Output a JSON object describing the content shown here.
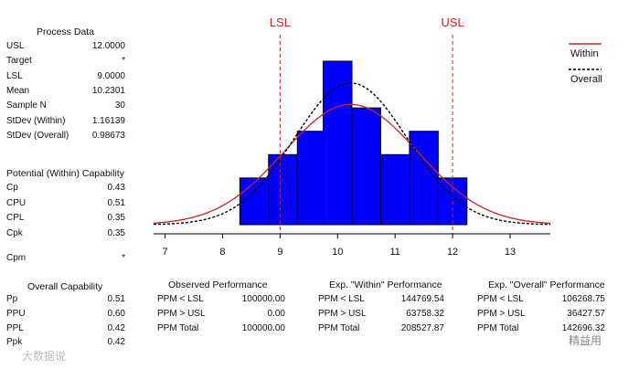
{
  "process_data": {
    "title": "Process Data",
    "rows": [
      {
        "label": "USL",
        "value": "12.0000"
      },
      {
        "label": "Target",
        "value": "*"
      },
      {
        "label": "LSL",
        "value": "9.0000"
      },
      {
        "label": "Mean",
        "value": "10.2301"
      },
      {
        "label": "Sample N",
        "value": "30"
      },
      {
        "label": "StDev (Within)",
        "value": "1.16139"
      },
      {
        "label": "StDev (Overall)",
        "value": "0.98673"
      }
    ]
  },
  "potential_capability": {
    "title": "Potential (Within) Capability",
    "rows": [
      {
        "label": "Cp",
        "value": "0.43"
      },
      {
        "label": "CPU",
        "value": "0.51"
      },
      {
        "label": "CPL",
        "value": "0.35"
      },
      {
        "label": "Cpk",
        "value": "0.35"
      },
      {
        "label": "Cpm",
        "value": "*"
      }
    ]
  },
  "overall_capability": {
    "title": "Overall Capability",
    "rows": [
      {
        "label": "Pp",
        "value": "0.51"
      },
      {
        "label": "PPU",
        "value": "0.60"
      },
      {
        "label": "PPL",
        "value": "0.42"
      },
      {
        "label": "Ppk",
        "value": "0.42"
      }
    ]
  },
  "observed_performance": {
    "title": "Observed Performance",
    "rows": [
      {
        "label": "PPM < LSL",
        "value": "100000.00"
      },
      {
        "label": "PPM > USL",
        "value": "0.00"
      },
      {
        "label": "PPM Total",
        "value": "100000.00"
      }
    ]
  },
  "within_performance": {
    "title": "Exp. \"Within\" Performance",
    "rows": [
      {
        "label": "PPM < LSL",
        "value": "144769.54"
      },
      {
        "label": "PPM > USL",
        "value": "63758.32"
      },
      {
        "label": "PPM Total",
        "value": "208527.87"
      }
    ]
  },
  "overall_performance": {
    "title": "Exp. \"Overall\" Performance",
    "rows": [
      {
        "label": "PPM < LSL",
        "value": "106268.75"
      },
      {
        "label": "PPM > USL",
        "value": "36427.57"
      },
      {
        "label": "PPM Total",
        "value": "142696.32"
      }
    ]
  },
  "chart_data": {
    "type": "bar",
    "title": "",
    "xlabel": "",
    "ylabel": "",
    "xlim": [
      6.8,
      13.7
    ],
    "x_ticks": [
      "7",
      "8",
      "9",
      "10",
      "11",
      "12",
      "13"
    ],
    "bins": [
      {
        "start": 8.3,
        "end": 8.8,
        "count": 2
      },
      {
        "start": 8.8,
        "end": 9.3,
        "count": 3
      },
      {
        "start": 9.3,
        "end": 9.75,
        "count": 4
      },
      {
        "start": 9.75,
        "end": 10.25,
        "count": 7
      },
      {
        "start": 10.25,
        "end": 10.75,
        "count": 5
      },
      {
        "start": 10.75,
        "end": 11.25,
        "count": 3
      },
      {
        "start": 11.25,
        "end": 11.75,
        "count": 4
      },
      {
        "start": 11.75,
        "end": 12.25,
        "count": 2
      }
    ],
    "bar_color": "#0000ff",
    "spec_limits": [
      {
        "label": "LSL",
        "value": 9.0
      },
      {
        "label": "USL",
        "value": 12.0
      }
    ],
    "spec_color": "#cc2222",
    "mean": 10.2301,
    "sample_n": 30,
    "bin_width": 0.5,
    "curves": [
      {
        "name": "Within",
        "stdev": 1.16139,
        "color": "#cc2222",
        "style": "solid"
      },
      {
        "name": "Overall",
        "stdev": 0.98673,
        "color": "#000000",
        "style": "dashed"
      }
    ],
    "legend": "top-right"
  },
  "watermarks": {
    "left": "大数据说",
    "right": "精益用"
  }
}
